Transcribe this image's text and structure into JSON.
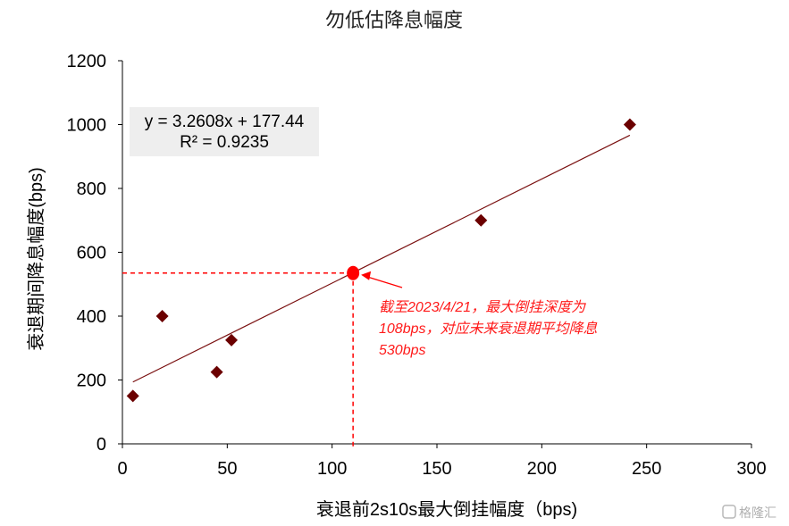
{
  "chart_data": {
    "type": "scatter",
    "title": "勿低估降息幅度",
    "xlabel": "衰退前2s10s最大倒挂幅度（bps)",
    "ylabel": "衰退期间降息幅度(bps)",
    "xlim": [
      0,
      300
    ],
    "ylim": [
      0,
      1200
    ],
    "x_ticks": [
      "0",
      "50",
      "100",
      "150",
      "200",
      "250",
      "300"
    ],
    "y_ticks": [
      "0",
      "200",
      "400",
      "600",
      "800",
      "1000",
      "1200"
    ],
    "grid": false,
    "colors": {
      "points": "#6b0000",
      "trendline": "#7a1010",
      "highlight": "#ff0000"
    },
    "points": [
      {
        "x": 5,
        "y": 150
      },
      {
        "x": 19,
        "y": 400
      },
      {
        "x": 45,
        "y": 225
      },
      {
        "x": 52,
        "y": 325
      },
      {
        "x": 171,
        "y": 700
      },
      {
        "x": 242,
        "y": 1000
      }
    ],
    "trendline": {
      "slope": 3.2608,
      "intercept": 177.44,
      "x_range": [
        5,
        242
      ]
    },
    "equation": {
      "line1": "y = 3.2608x + 177.44",
      "line2": "R² = 0.9235"
    },
    "highlight": {
      "x": 110,
      "y": 535
    },
    "annotation": {
      "lines": [
        "截至2023/4/21，最大倒挂深度为",
        "108bps，对应未来衰退期平均降息",
        "530bps"
      ]
    }
  },
  "watermark": {
    "text": "格隆汇"
  }
}
